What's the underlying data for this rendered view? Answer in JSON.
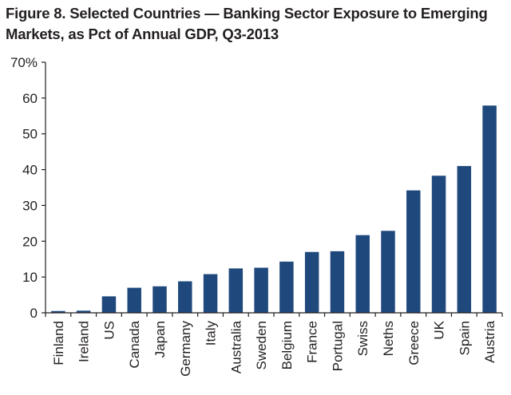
{
  "title_line1": "Figure 8. Selected Countries — Banking Sector Exposure to Emerging",
  "title_line2": "Markets, as Pct of Annual GDP, Q3-2013",
  "colors": {
    "bar": "#1f497d",
    "axis": "#231f20"
  },
  "chart_data": {
    "type": "bar",
    "title": "Figure 8. Selected Countries — Banking Sector Exposure to Emerging Markets, as Pct of Annual GDP, Q3-2013",
    "xlabel": "",
    "ylabel": "",
    "ylim": [
      0,
      70
    ],
    "yticks": [
      0,
      10,
      20,
      30,
      40,
      50,
      60,
      70
    ],
    "ytick_labels": [
      "0",
      "10",
      "20",
      "30",
      "40",
      "50",
      "60",
      "70%"
    ],
    "grid": false,
    "legend": "none",
    "categories": [
      "Finland",
      "Ireland",
      "US",
      "Canada",
      "Japan",
      "Germany",
      "Italy",
      "Australia",
      "Sweden",
      "Belgium",
      "France",
      "Portugal",
      "Swiss",
      "Neths",
      "Greece",
      "UK",
      "Spain",
      "Austria"
    ],
    "values": [
      0.5,
      0.6,
      4.6,
      7.0,
      7.4,
      8.8,
      10.8,
      12.4,
      12.6,
      14.3,
      17.0,
      17.2,
      21.7,
      22.9,
      34.2,
      38.3,
      41.0,
      57.9
    ]
  }
}
